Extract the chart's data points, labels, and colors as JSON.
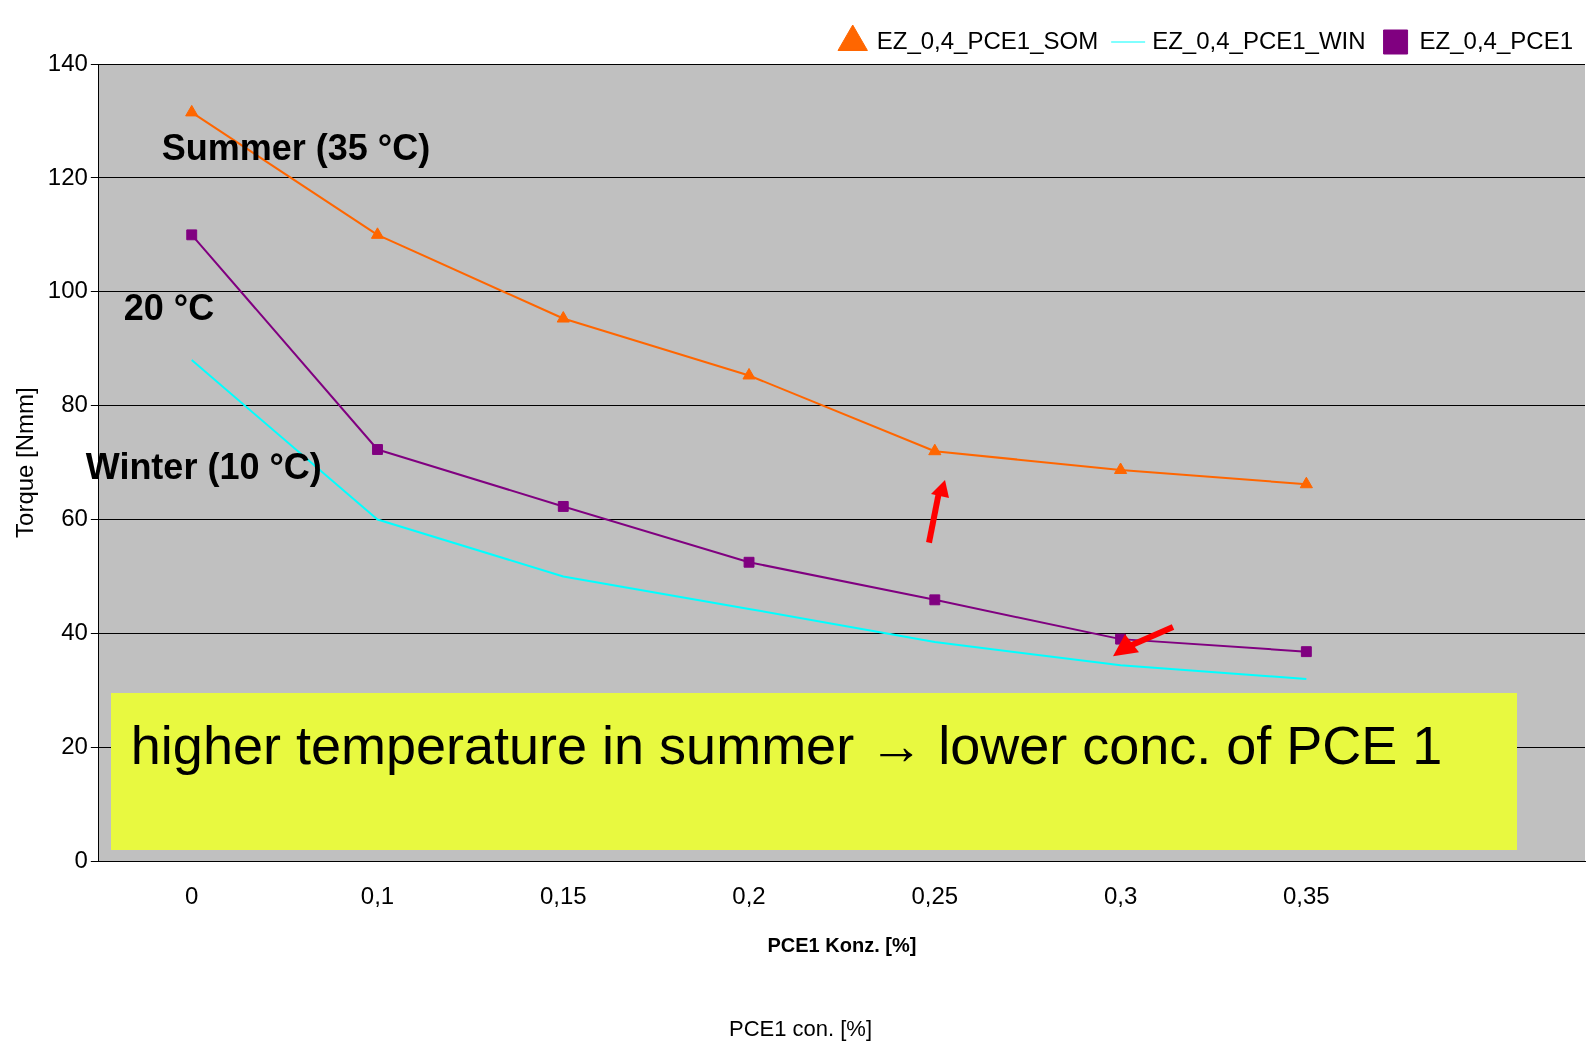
{
  "chart_data": {
    "type": "line",
    "xlabel": "PCE1 Konz. [%]",
    "ylabel": "Torque [Nmm]",
    "categories": [
      "0",
      "0,1",
      "0,15",
      "0,2",
      "0,25",
      "0,3",
      "0,35",
      null
    ],
    "series": [
      {
        "name": "EZ_0,4_PCE1_SOM",
        "color": "#ff6600",
        "marker": "triangle",
        "values": [
          131.5,
          110,
          95.3,
          85.3,
          72,
          68.7,
          66.2,
          null
        ]
      },
      {
        "name": "EZ_0,4_PCE1_WIN",
        "color": "#00ffff",
        "marker": "none",
        "values": [
          88,
          60,
          50,
          44.3,
          38.5,
          34.4,
          32,
          null
        ]
      },
      {
        "name": "EZ_0,4_PCE1",
        "color": "#800080",
        "marker": "square",
        "values": [
          110,
          72.3,
          62.3,
          52.5,
          45.9,
          39,
          36.8,
          null
        ]
      }
    ],
    "ylim": [
      0,
      140
    ],
    "yticks": [
      0,
      20,
      40,
      60,
      80,
      100,
      120,
      140
    ],
    "grid": "y",
    "legend": "top right",
    "annotations": [
      "Summer (35 °C)",
      "20 °C",
      "Winter (10 °C)",
      "higher temperature in summer → lower conc. of PCE 1",
      "PCE1 con. [%]"
    ]
  }
}
